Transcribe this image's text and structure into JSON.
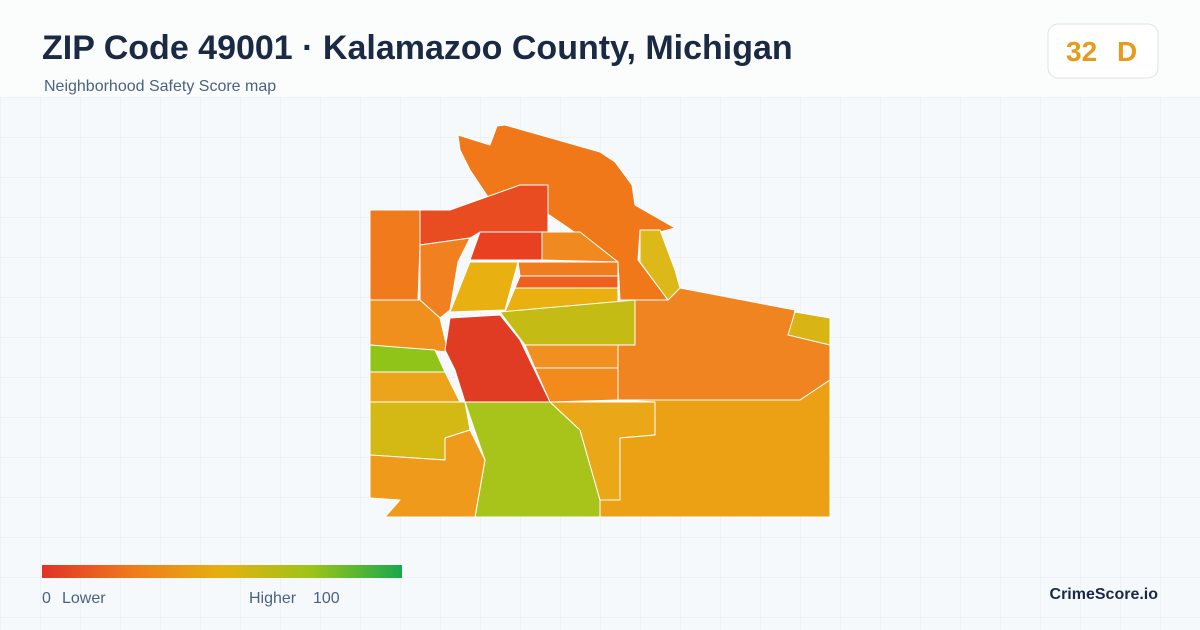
{
  "header": {
    "title": "ZIP Code 49001 · Kalamazoo County, Michigan",
    "subtitle": "Neighborhood Safety Score map"
  },
  "score": {
    "value": 32,
    "grade": "D"
  },
  "legend": {
    "min": 0,
    "min_label": "Lower",
    "max_label": "Higher",
    "max": 100
  },
  "brand": "CrimeScore.io"
}
